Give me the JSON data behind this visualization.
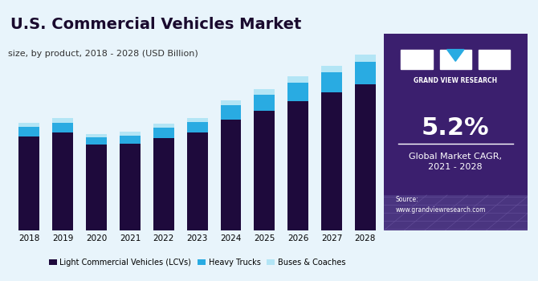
{
  "title": "U.S. Commercial Vehicles Market",
  "subtitle": "size, by product, 2018 - 2028 (USD Billion)",
  "years": [
    2018,
    2019,
    2020,
    2021,
    2022,
    2023,
    2024,
    2025,
    2026,
    2027,
    2028
  ],
  "lcv": [
    280,
    290,
    255,
    258,
    275,
    290,
    330,
    355,
    385,
    410,
    435
  ],
  "heavy_trucks": [
    28,
    30,
    22,
    24,
    30,
    32,
    42,
    48,
    55,
    60,
    65
  ],
  "buses": [
    12,
    13,
    10,
    11,
    12,
    13,
    15,
    16,
    18,
    20,
    22
  ],
  "color_lcv": "#1e0a3c",
  "color_heavy": "#29abe2",
  "color_buses": "#b3e5f5",
  "color_bg_chart": "#e8f4fb",
  "color_bg_panel": "#3b1f6e",
  "legend_labels": [
    "Light Commercial Vehicles (LCVs)",
    "Heavy Trucks",
    "Buses & Coaches"
  ],
  "cagr_text": "5.2%",
  "cagr_label": "Global Market CAGR,\n2021 - 2028",
  "source_text": "Source:\nwww.grandviewresearch.com"
}
